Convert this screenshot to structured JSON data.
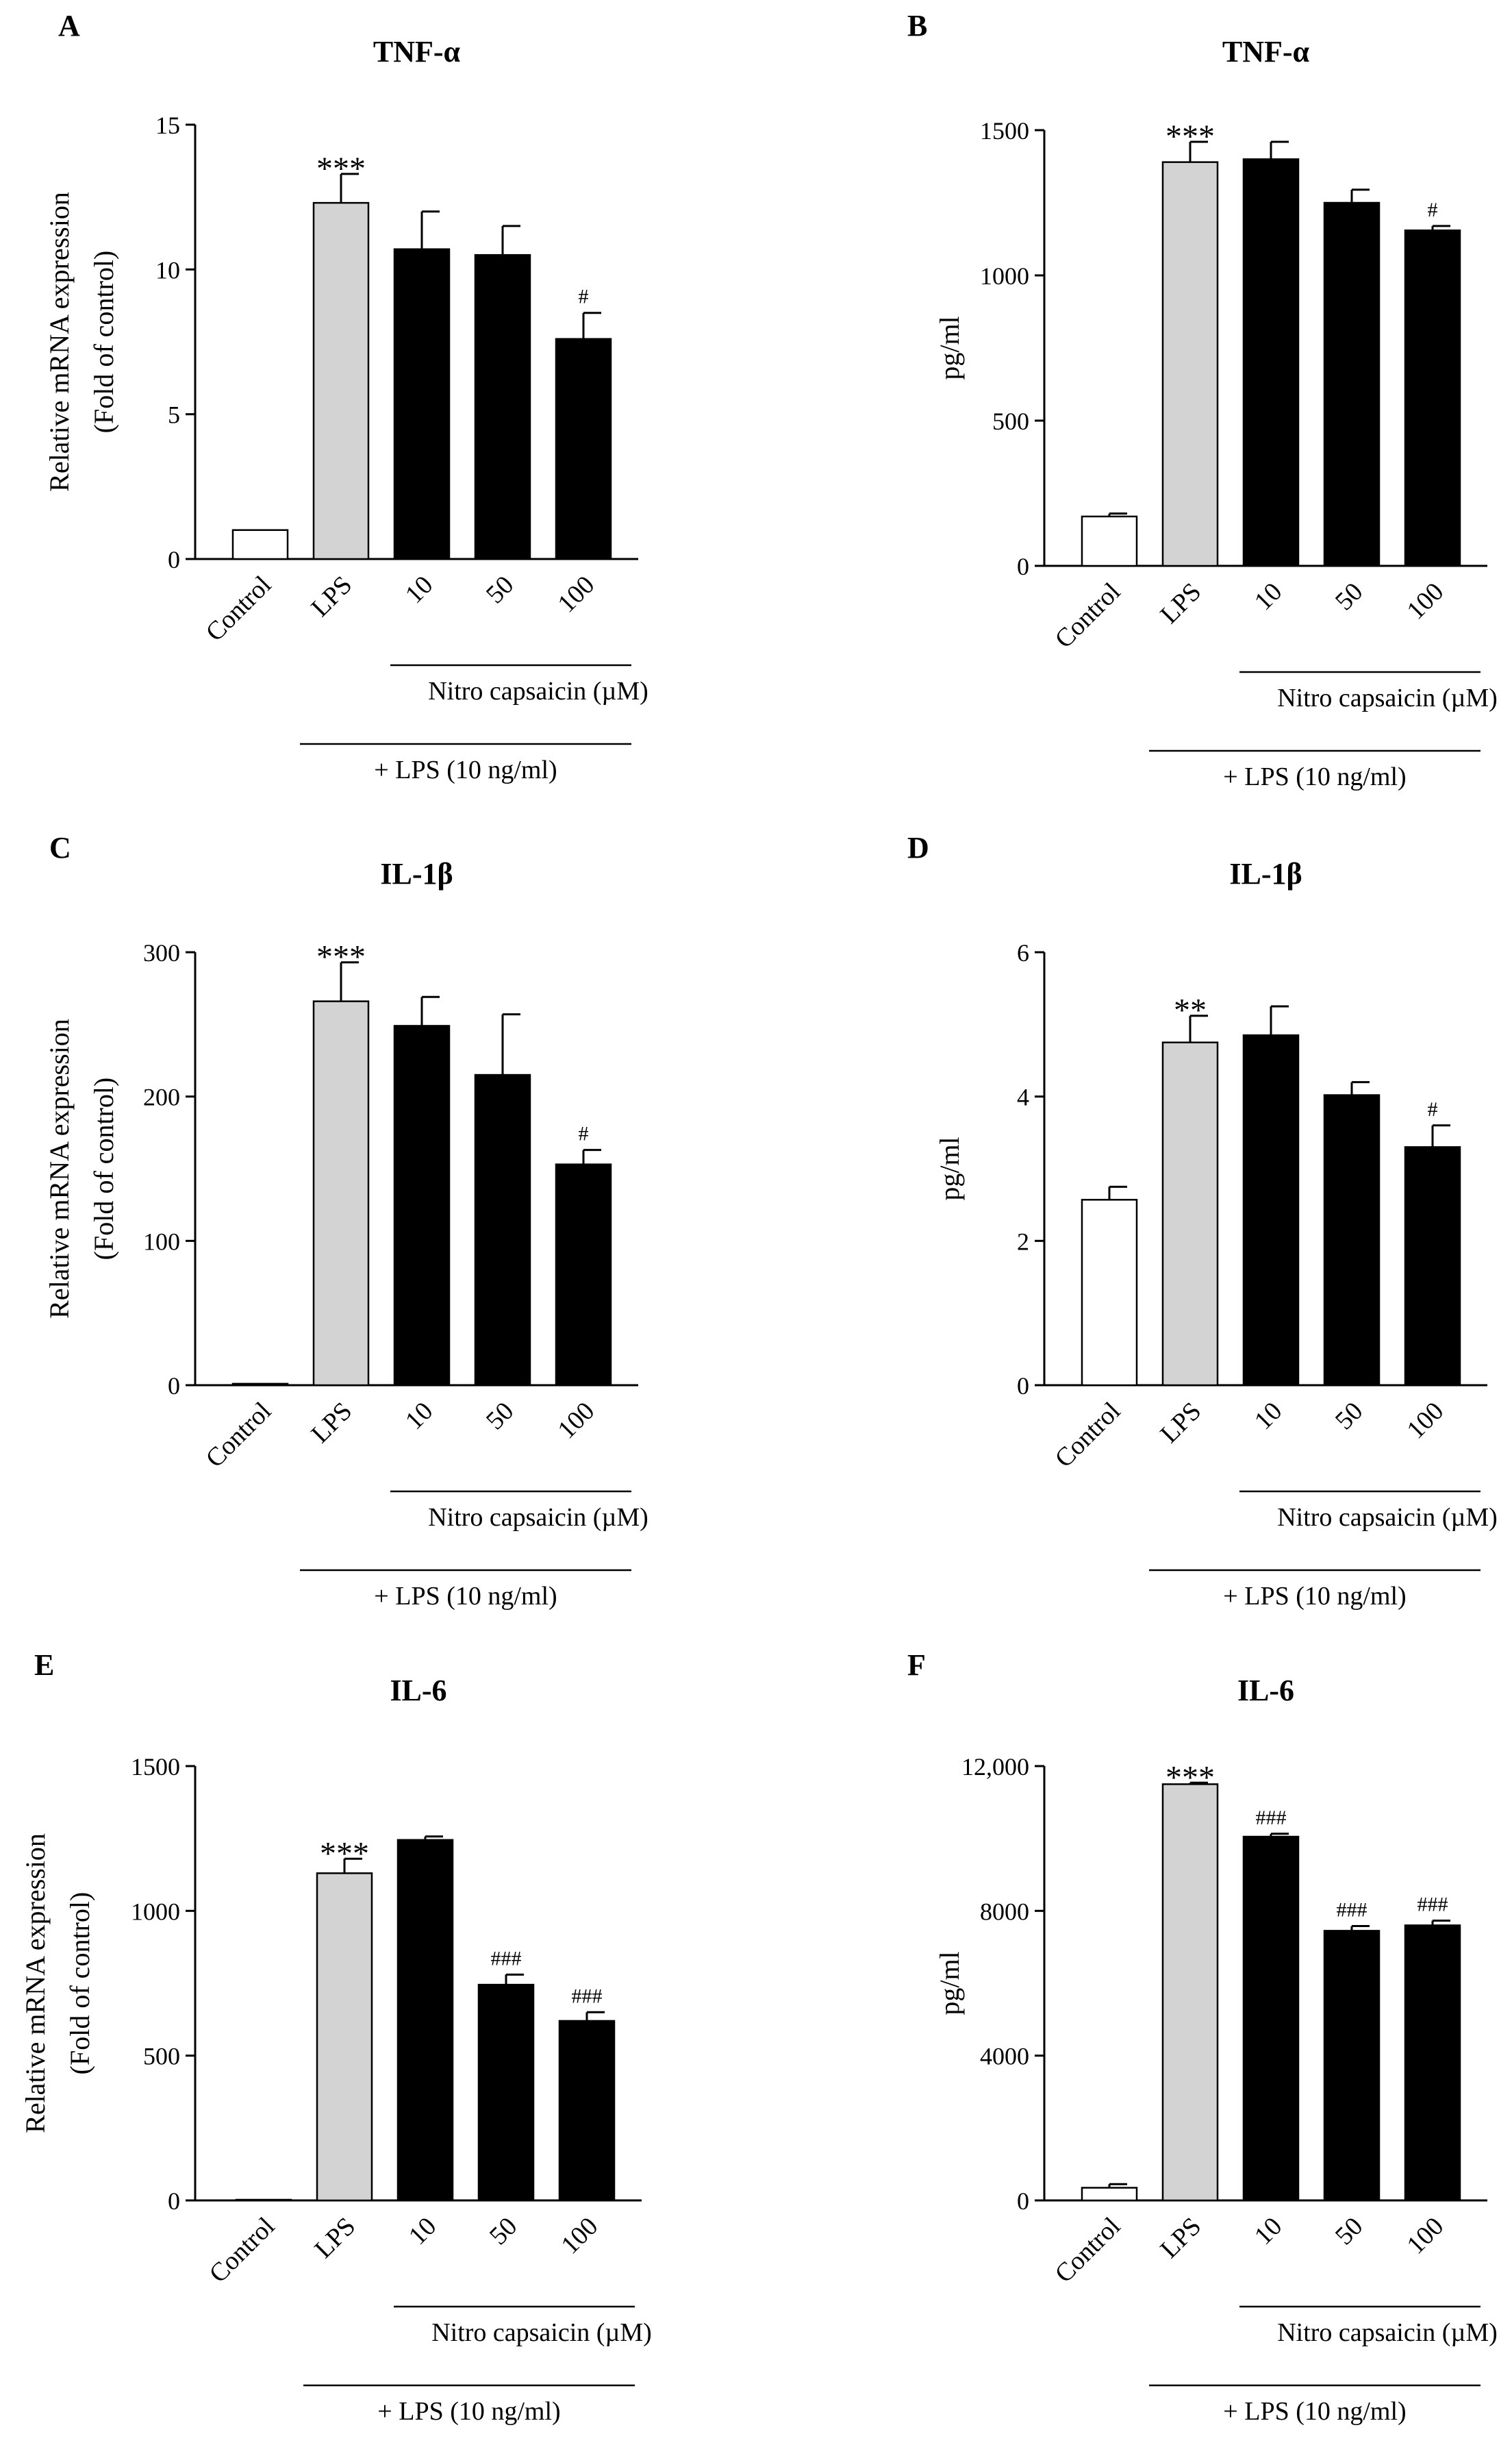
{
  "figure": {
    "categories": [
      "Control",
      "LPS",
      "10",
      "50",
      "100"
    ],
    "group_label": "Nitro capsaicin (µM)",
    "treatment_label": "+ LPS (10 ng/ml)",
    "colors": {
      "control": "#ffffff",
      "lps": "#d3d3d3",
      "nitro": "#000000",
      "stroke": "#000000"
    }
  },
  "chart_data": [
    {
      "panel": "A",
      "title": "TNF-α",
      "type": "bar",
      "ylabel": [
        "Relative mRNA expression",
        "(Fold of control)"
      ],
      "ylim": [
        0,
        15
      ],
      "yticks": [
        0,
        5,
        10,
        15
      ],
      "ytick_labels": [
        "0",
        "5",
        "10",
        "15"
      ],
      "categories": [
        "Control",
        "LPS",
        "10",
        "50",
        "100"
      ],
      "values": [
        1.0,
        12.3,
        10.7,
        10.5,
        7.6
      ],
      "errors": [
        0,
        1.0,
        1.3,
        1.0,
        0.9
      ],
      "annotations": [
        "",
        "***",
        "",
        "",
        "#"
      ]
    },
    {
      "panel": "B",
      "title": "TNF-α",
      "type": "bar",
      "ylabel": [
        "pg/ml"
      ],
      "ylim": [
        0,
        1500
      ],
      "yticks": [
        0,
        500,
        1000,
        1500
      ],
      "ytick_labels": [
        "0",
        "500",
        "1000",
        "1500"
      ],
      "categories": [
        "Control",
        "LPS",
        "10",
        "50",
        "100"
      ],
      "values": [
        170,
        1390,
        1400,
        1250,
        1155
      ],
      "errors": [
        10,
        70,
        60,
        45,
        15
      ],
      "annotations": [
        "",
        "***",
        "",
        "",
        "#"
      ]
    },
    {
      "panel": "C",
      "title": "IL-1β",
      "type": "bar",
      "ylabel": [
        "Relative mRNA expression",
        "(Fold of control)"
      ],
      "ylim": [
        0,
        300
      ],
      "yticks": [
        0,
        100,
        200,
        300
      ],
      "ytick_labels": [
        "0",
        "100",
        "200",
        "300"
      ],
      "categories": [
        "Control",
        "LPS",
        "10",
        "50",
        "100"
      ],
      "values": [
        1,
        266,
        249,
        215,
        153
      ],
      "errors": [
        0,
        27,
        20,
        42,
        10
      ],
      "annotations": [
        "",
        "***",
        "",
        "",
        "#"
      ]
    },
    {
      "panel": "D",
      "title": "IL-1β",
      "type": "bar",
      "ylabel": [
        "pg/ml"
      ],
      "ylim": [
        0,
        6
      ],
      "yticks": [
        0,
        2,
        4,
        6
      ],
      "ytick_labels": [
        "0",
        "2",
        "4",
        "6"
      ],
      "categories": [
        "Control",
        "LPS",
        "10",
        "50",
        "100"
      ],
      "values": [
        2.57,
        4.75,
        4.85,
        4.02,
        3.3
      ],
      "errors": [
        0.18,
        0.37,
        0.4,
        0.18,
        0.3
      ],
      "annotations": [
        "",
        "**",
        "",
        "",
        "#"
      ]
    },
    {
      "panel": "E",
      "title": "IL-6",
      "type": "bar",
      "ylabel": [
        "Relative mRNA expression",
        "(Fold of control)"
      ],
      "ylim": [
        0,
        1500
      ],
      "yticks": [
        0,
        500,
        1000,
        1500
      ],
      "ytick_labels": [
        "0",
        "500",
        "1000",
        "1500"
      ],
      "categories": [
        "Control",
        "LPS",
        "10",
        "50",
        "100"
      ],
      "values": [
        1,
        1130,
        1245,
        745,
        620
      ],
      "errors": [
        0,
        50,
        12,
        35,
        30
      ],
      "annotations": [
        "",
        "***",
        "",
        "###",
        "###"
      ]
    },
    {
      "panel": "F",
      "title": "IL-6",
      "type": "bar",
      "ylabel": [
        "pg/ml"
      ],
      "ylim": [
        0,
        12000
      ],
      "yticks": [
        0,
        4000,
        8000,
        12000
      ],
      "ytick_labels": [
        "0",
        "4000",
        "8000",
        "12,000"
      ],
      "categories": [
        "Control",
        "LPS",
        "10",
        "50",
        "100"
      ],
      "values": [
        350,
        11500,
        10050,
        7450,
        7600
      ],
      "errors": [
        100,
        40,
        80,
        130,
        130
      ],
      "annotations": [
        "",
        "***",
        "###",
        "###",
        "###"
      ]
    }
  ]
}
